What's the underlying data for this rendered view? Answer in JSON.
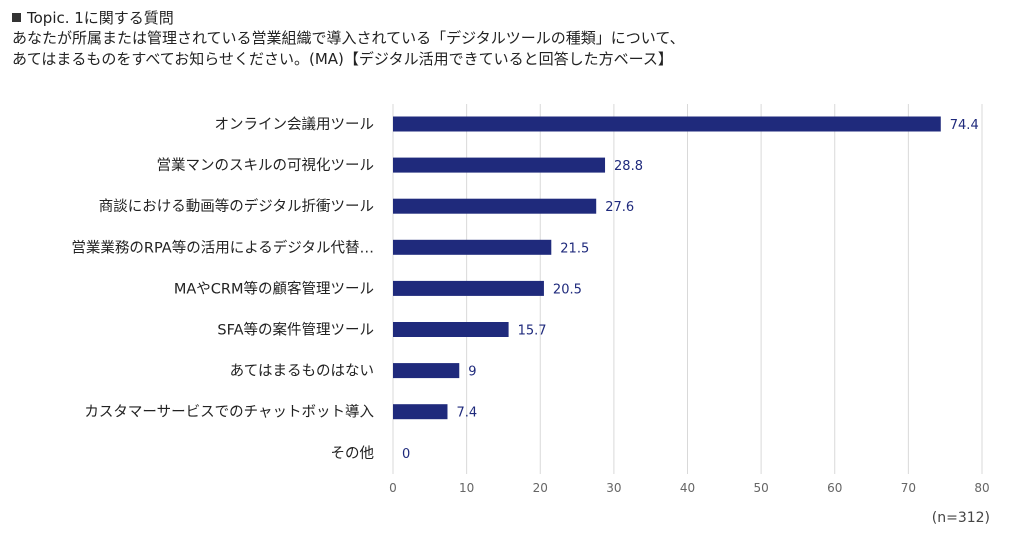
{
  "header": {
    "topic": "Topic. 1に関する質問",
    "question_line1": "あなたが所属または管理されている営業組織で導入されている「デジタルツールの種類」について、",
    "question_line2": "あてはまるものをすべてお知らせください。(MA)【デジタル活用できていると回答した方ベース】"
  },
  "footer": {
    "n_label": "(n=312)"
  },
  "colors": {
    "bar": "#1f2a7c",
    "value_label": "#1f2a7c",
    "grid": "#d9d9d9",
    "tick": "#666666"
  },
  "chart_data": {
    "type": "bar",
    "orientation": "horizontal",
    "categories": [
      "オンライン会議用ツール",
      "営業マンのスキルの可視化ツール",
      "商談における動画等のデジタル折衝ツール",
      "営業業務のRPA等の活用によるデジタル代替…",
      "MAやCRM等の顧客管理ツール",
      "SFA等の案件管理ツール",
      "あてはまるものはない",
      "カスタマーサービスでのチャットボット導入",
      "その他"
    ],
    "values": [
      74.4,
      28.8,
      27.6,
      21.5,
      20.5,
      15.7,
      9,
      7.4,
      0
    ],
    "value_labels": [
      "74.4",
      "28.8",
      "27.6",
      "21.5",
      "20.5",
      "15.7",
      "9",
      "7.4",
      "0"
    ],
    "xlim": [
      0,
      80
    ],
    "xticks": [
      0,
      10,
      20,
      30,
      40,
      50,
      60,
      70,
      80
    ],
    "xtick_labels": [
      "0",
      "10",
      "20",
      "30",
      "40",
      "50",
      "60",
      "70",
      "80"
    ],
    "grid": true,
    "legend": "none"
  }
}
